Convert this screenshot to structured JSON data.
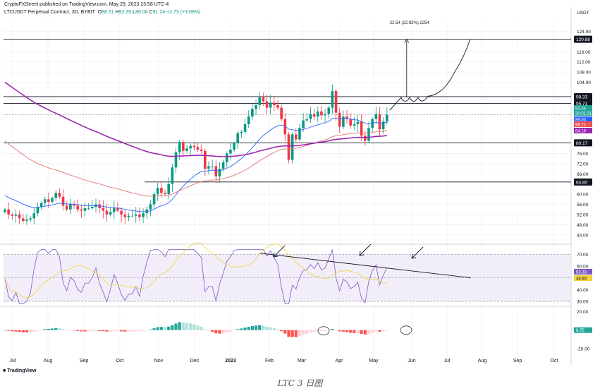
{
  "header": {
    "publisher": "CryptoFXStreet published on TradingView.com, May 29, 2023 23:58 UTC-4",
    "symbol": "LTCUSDT Perpetual Contract, 3D, BYBIT",
    "open_label": "O",
    "open": "88.51",
    "high_label": "H",
    "high": "92.35",
    "low_label": "L",
    "low": "88.08",
    "close_label": "C",
    "close": "91.24",
    "change": "+2.73 (+3.08%)"
  },
  "footer": {
    "brand": "TradingView",
    "caption": "LTC 3 日图"
  },
  "chart_data": [
    {
      "type": "candlestick",
      "title": "LTCUSDT Perpetual Contract, 3D, BYBIT",
      "currency": "USDT",
      "ylim": [
        42,
        128
      ],
      "y_ticks": [
        "44.00",
        "48.00",
        "52.00",
        "56.00",
        "60.00",
        "64.00",
        "68.00",
        "72.00",
        "76.00",
        "104.00",
        "108.00",
        "112.00",
        "116.00",
        "124.00"
      ],
      "x_ticks": [
        "Jul",
        "Aug",
        "Sep",
        "Oct",
        "Nov",
        "Dec",
        "2023",
        "Feb",
        "Mar",
        "Apr",
        "May",
        "Jun",
        "Jul",
        "Aug",
        "Sep",
        "Oct"
      ],
      "closes": [
        54,
        52,
        51.5,
        52,
        50.5,
        49.5,
        50,
        50.5,
        52.5,
        55,
        56.5,
        58,
        57,
        58.5,
        60.5,
        59,
        55.5,
        54,
        56,
        55.5,
        54,
        53.5,
        54.5,
        54.5,
        55,
        56,
        54.5,
        53.5,
        52,
        53,
        54.5,
        53.5,
        52,
        51,
        51.5,
        51.5,
        52,
        51,
        52.5,
        54,
        56,
        60,
        62.5,
        60.5,
        60,
        64,
        70.5,
        76.5,
        80.5,
        77,
        78,
        79,
        78.5,
        77.5,
        77,
        70,
        71,
        71,
        67,
        70,
        72.5,
        76,
        77.5,
        80,
        84,
        84.5,
        87.5,
        90.5,
        93.5,
        95,
        98,
        96.5,
        94,
        96,
        95,
        94,
        89.5,
        83.5,
        73.5,
        83.5,
        81.5,
        86,
        89,
        89.5,
        91.5,
        90.5,
        92.5,
        91,
        91.5,
        94,
        100.5,
        92,
        86.5,
        90.5,
        89.5,
        87,
        87.5,
        88.5,
        83,
        81,
        86,
        89.5,
        91.5,
        85.5,
        88.5,
        91.24
      ],
      "series": [
        {
          "name": "EMA 20",
          "color": "#2962ff"
        },
        {
          "name": "EMA 50",
          "color": "#e57373"
        },
        {
          "name": "EMA 100",
          "color": "#9c27b0"
        }
      ],
      "price_levels": [
        {
          "value": 120.88,
          "label": "120.88",
          "style": "solid"
        },
        {
          "value": 98.33,
          "label": "98.33",
          "style": "solid"
        },
        {
          "value": 95.71,
          "label": "95.71",
          "style": "solid"
        },
        {
          "value": 80.17,
          "label": "80.17",
          "style": "solid"
        },
        {
          "value": 64.8,
          "label": "64.80",
          "style": "solid"
        },
        {
          "value": 91.24,
          "label": "91.24",
          "style": "dotted"
        }
      ],
      "price_badges": [
        {
          "label": "91.24",
          "color": "#26a69a"
        },
        {
          "label": "20:01:31",
          "color": "#26a69a"
        },
        {
          "label": "89.03",
          "color": "#2962ff"
        },
        {
          "label": "86.71",
          "color": "#ef5350"
        },
        {
          "label": "84.19",
          "color": "#9c27b0"
        }
      ],
      "annotation_top": "22.54 (22.92%) 2254"
    },
    {
      "type": "line",
      "title": "RSI",
      "ylim": [
        27,
        75
      ],
      "y_ticks": [
        "30.00",
        "40.00",
        "60.00",
        "70.00"
      ],
      "upper_band": 70,
      "lower_band": 30,
      "badges": [
        {
          "label": "53.33",
          "color": "#7e57c2"
        },
        {
          "label": "48.93",
          "color": "#f5d13c"
        }
      ]
    },
    {
      "type": "bar",
      "title": "MACD Histogram",
      "ylim": [
        -32,
        24
      ],
      "y_ticks": [
        "20.00",
        "-20.00"
      ],
      "badge": {
        "label": "6.75",
        "color": "#26a69a"
      }
    }
  ]
}
